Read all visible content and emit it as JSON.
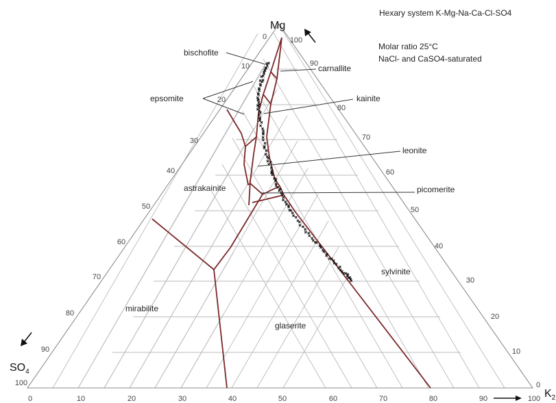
{
  "title": "Hexary system K-Mg-Na-Ca-Cl-SO4",
  "condition_line1": "Molar ratio 25°C",
  "condition_line2": "NaCl- and CaSO4-saturated",
  "vertices": {
    "top": "Mg",
    "left_main": "SO",
    "left_sub": "4",
    "right_main": "K",
    "right_sub": "2"
  },
  "ticks": {
    "bottom": [
      "0",
      "10",
      "20",
      "30",
      "40",
      "50",
      "60",
      "70",
      "80",
      "90",
      "100"
    ],
    "left": [
      "0",
      "10",
      "20",
      "30",
      "40",
      "50",
      "60",
      "70",
      "80",
      "90",
      "100"
    ],
    "right": [
      "100",
      "90",
      "80",
      "70",
      "60",
      "50",
      "40",
      "30",
      "20",
      "10",
      "0"
    ]
  },
  "fields": {
    "bischofite": "bischofite",
    "carnallite": "carnallite",
    "epsomite": "epsomite",
    "kainite": "kainite",
    "leonite": "leonite",
    "astrakainite": "astrakainite",
    "picomerite": "picomerite",
    "sylvinite": "sylvinite",
    "mirabilite": "mirabilite",
    "glaserite": "glaserite"
  },
  "colors": {
    "boundary": "#7a2626",
    "grid": "#b9b9b9",
    "frame": "#8c8c8c",
    "points": "#111111"
  },
  "icons": {
    "mg_direction": "arrow-up-left-icon",
    "so4_direction": "arrow-down-left-icon",
    "k2_direction": "arrow-right-icon"
  }
}
